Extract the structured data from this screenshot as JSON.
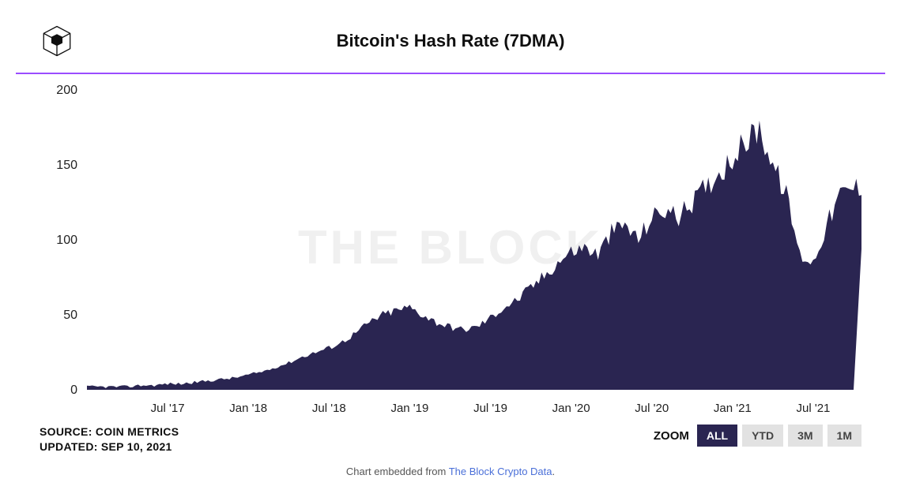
{
  "title": "Bitcoin's Hash Rate (7DMA)",
  "watermark": "THE BLOCK",
  "accent_color": "#9b4dff",
  "chart": {
    "type": "area",
    "fill_color": "#2a2551",
    "background_color": "#ffffff",
    "title_fontsize": 22,
    "label_fontsize": 15,
    "ylim": [
      0,
      200
    ],
    "ytick_step": 50,
    "yticks": [
      0,
      50,
      100,
      150,
      200
    ],
    "xlim": [
      0,
      57
    ],
    "xticks_pos": [
      6,
      12,
      18,
      24,
      30,
      36,
      42,
      48,
      54
    ],
    "xticks_labels": [
      "Jul '17",
      "Jan '18",
      "Jul '18",
      "Jan '19",
      "Jul '19",
      "Jan '20",
      "Jul '20",
      "Jan '21",
      "Jul '21"
    ],
    "values": [
      2,
      2,
      2,
      2,
      3,
      3,
      4,
      4,
      5,
      6,
      7,
      8,
      10,
      12,
      15,
      18,
      22,
      25,
      28,
      32,
      38,
      45,
      50,
      53,
      55,
      50,
      45,
      42,
      40,
      42,
      48,
      55,
      60,
      68,
      76,
      85,
      92,
      95,
      90,
      105,
      110,
      100,
      115,
      120,
      115,
      125,
      135,
      145,
      155,
      165,
      175,
      150,
      130,
      90,
      85,
      110,
      130,
      135
    ]
  },
  "source": {
    "label": "SOURCE: COIN METRICS",
    "updated": "UPDATED: SEP 10, 2021"
  },
  "zoom": {
    "label": "ZOOM",
    "buttons": [
      {
        "label": "ALL",
        "active": true
      },
      {
        "label": "YTD",
        "active": false
      },
      {
        "label": "3M",
        "active": false
      },
      {
        "label": "1M",
        "active": false
      }
    ]
  },
  "embed": {
    "prefix": "Chart embedded from ",
    "link_text": "The Block Crypto Data",
    "suffix": "."
  }
}
